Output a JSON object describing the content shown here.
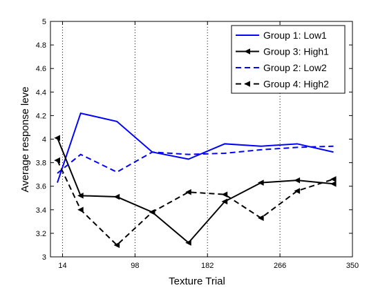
{
  "chart_data": {
    "type": "line",
    "title": "",
    "xlabel": "Texture Trial",
    "ylabel": "Average response leve",
    "xlim": [
      0,
      350
    ],
    "ylim": [
      3,
      5
    ],
    "x_ticks": [
      14,
      98,
      182,
      266,
      350
    ],
    "y_ticks": [
      3,
      3.2,
      3.4,
      3.6,
      3.8,
      4,
      4.2,
      4.4,
      4.6,
      4.8,
      5
    ],
    "y_tick_labels": [
      "3",
      "3.2",
      "3.4",
      "3.6",
      "3.8",
      "4",
      "4.2",
      "4.4",
      "4.6",
      "4.8",
      "5"
    ],
    "vertical_gridlines_dotted_at": [
      14,
      98,
      182,
      266
    ],
    "x": [
      8,
      35,
      77,
      118,
      160,
      202,
      244,
      286,
      328
    ],
    "series": [
      {
        "name": "Group 1: Low1",
        "color": "#0000ff",
        "line_style": "solid",
        "marker": "none",
        "values": [
          3.63,
          4.22,
          4.15,
          3.89,
          3.83,
          3.96,
          3.94,
          3.96,
          3.89
        ]
      },
      {
        "name": "Group 3: High1",
        "color": "#000000",
        "line_style": "solid",
        "marker": "left-triangle",
        "values": [
          4.01,
          3.52,
          3.51,
          3.38,
          3.12,
          3.47,
          3.63,
          3.65,
          3.62
        ]
      },
      {
        "name": "Group 2: Low2",
        "color": "#0000ff",
        "line_style": "dashed",
        "marker": "none",
        "values": [
          3.71,
          3.87,
          3.72,
          3.89,
          3.87,
          3.88,
          3.91,
          3.93,
          3.94
        ]
      },
      {
        "name": "Group 4: High2",
        "color": "#000000",
        "line_style": "dashed",
        "marker": "left-triangle",
        "values": [
          3.82,
          3.4,
          3.1,
          3.38,
          3.55,
          3.53,
          3.33,
          3.56,
          3.66
        ]
      }
    ],
    "legend_position": "top-right"
  }
}
